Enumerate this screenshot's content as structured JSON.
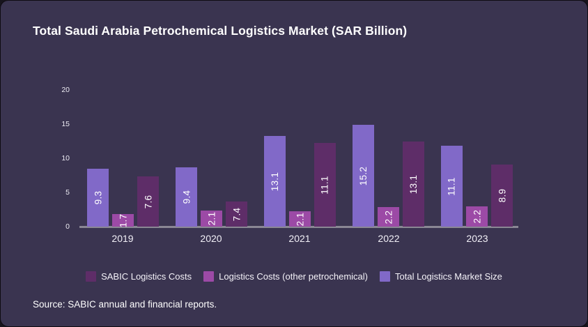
{
  "page": {
    "source": "Source: SABIC annual and financial reports."
  },
  "colors": {
    "card_background": "#3a3450",
    "outer_background": "#17141d",
    "axis_line": "#8a8794",
    "text": "#ffffff",
    "series_total": "#8169c8",
    "series_other": "#9c4aa6",
    "series_sabic": "#5e2d68"
  },
  "chart_data": {
    "type": "bar",
    "title": "Total Saudi Arabia Petrochemical Logistics Market (SAR Billion)",
    "categories": [
      "2019",
      "2020",
      "2021",
      "2022",
      "2023"
    ],
    "series": [
      {
        "name": "Total Logistics Market Size",
        "color": "#8169c8",
        "values": [
          9.3,
          9.4,
          13.1,
          15.2,
          11.1
        ],
        "rendered_units": [
          8.5,
          8.7,
          13.3,
          14.9,
          11.8
        ]
      },
      {
        "name": "Logistics Costs (other petrochemical)",
        "color": "#9c4aa6",
        "values": [
          1.7,
          2.1,
          2.1,
          2.2,
          2.2
        ],
        "rendered_units": [
          1.8,
          2.3,
          2.2,
          2.9,
          3.0
        ]
      },
      {
        "name": "SABIC Logistics Costs",
        "color": "#5e2d68",
        "values": [
          7.6,
          7.4,
          11.1,
          13.1,
          8.9
        ],
        "rendered_units": [
          7.3,
          3.7,
          12.2,
          12.4,
          9.1
        ]
      }
    ],
    "xlabel": "",
    "ylabel": "",
    "ylim": [
      0,
      20
    ],
    "yticks": [
      0,
      5,
      10,
      15,
      20
    ],
    "grid": false,
    "value_labels": "inside-bar-rotated-90ccw",
    "legend_position": "bottom",
    "legend": [
      {
        "label": "SABIC Logistics Costs",
        "color": "#5e2d68"
      },
      {
        "label": "Logistics Costs (other petrochemical)",
        "color": "#9c4aa6"
      },
      {
        "label": "Total Logistics Market Size",
        "color": "#8169c8"
      }
    ]
  }
}
